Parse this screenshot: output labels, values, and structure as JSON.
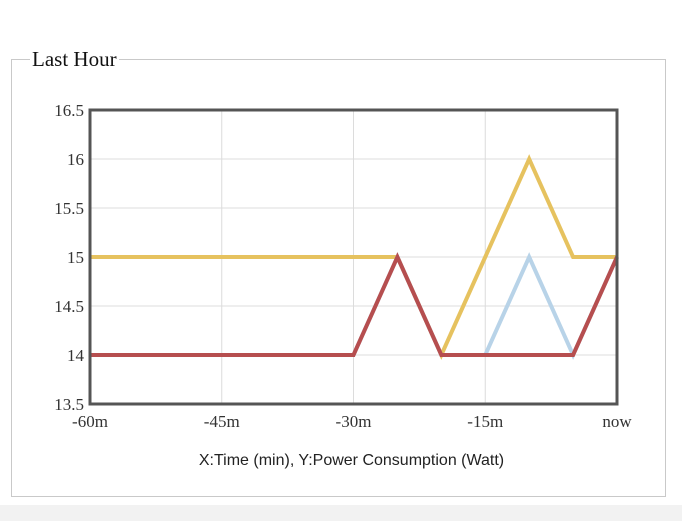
{
  "panel": {
    "title": "Last Hour"
  },
  "chart_data": {
    "type": "line",
    "title": "Last Hour",
    "xlabel": "X:Time (min), Y:Power Consumption (Watt)",
    "ylabel": "",
    "x_tick_labels": [
      "-60m",
      "-45m",
      "-30m",
      "-15m",
      "now"
    ],
    "x_ticks": [
      -60,
      -45,
      -30,
      -15,
      0
    ],
    "y_tick_labels": [
      "13.5",
      "14",
      "14.5",
      "15",
      "15.5",
      "16",
      "16.5"
    ],
    "y_ticks": [
      13.5,
      14,
      14.5,
      15,
      15.5,
      16,
      16.5
    ],
    "xlim": [
      -60,
      0
    ],
    "ylim": [
      13.5,
      16.5
    ],
    "grid": true,
    "legend": "none",
    "series": [
      {
        "color": "#e6c25f",
        "x": [
          -60,
          -25,
          -20,
          -15,
          -10,
          -5,
          0
        ],
        "y": [
          15,
          15,
          14,
          15,
          16,
          15,
          15
        ]
      },
      {
        "color": "#b8d3e8",
        "x": [
          -60,
          -30,
          -25,
          -20,
          -15,
          -10,
          -5,
          0
        ],
        "y": [
          14,
          14,
          15,
          14,
          14,
          15,
          14,
          15
        ]
      },
      {
        "color": "#b64e4f",
        "x": [
          -60,
          -30,
          -25,
          -20,
          -5,
          0
        ],
        "y": [
          14,
          14,
          15,
          14,
          14,
          15
        ]
      }
    ]
  }
}
